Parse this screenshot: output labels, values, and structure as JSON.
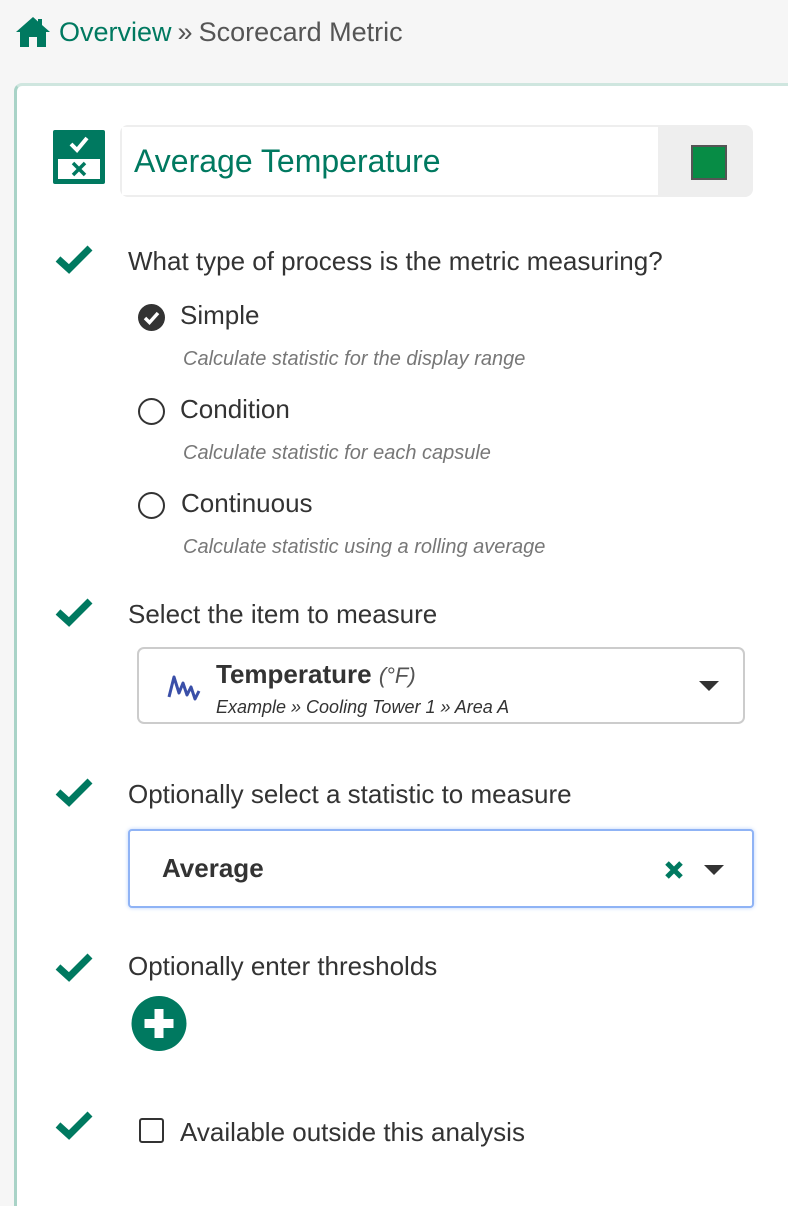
{
  "breadcrumb": {
    "home_icon": "home-icon",
    "link": "Overview",
    "separator": "»",
    "current": "Scorecard Metric"
  },
  "metric": {
    "icon": "scorecard-icon",
    "name": "Average Temperature",
    "color": "#078c45"
  },
  "colors": {
    "accent": "#007960",
    "signal": "#3a4fa8"
  },
  "process": {
    "question": "What type of process is the metric measuring?",
    "options": [
      {
        "label": "Simple",
        "description": "Calculate statistic for the display range",
        "selected": true
      },
      {
        "label": "Condition",
        "description": "Calculate statistic for each capsule",
        "selected": false
      },
      {
        "label": "Continuous",
        "description": "Calculate statistic using a rolling average",
        "selected": false
      }
    ]
  },
  "item": {
    "question": "Select the item to measure",
    "name": "Temperature",
    "unit": "(°F)",
    "path": "Example » Cooling Tower 1 » Area A",
    "icon": "signal-icon"
  },
  "statistic": {
    "question": "Optionally select a statistic to measure",
    "value": "Average"
  },
  "thresholds": {
    "question": "Optionally enter thresholds",
    "add_icon": "plus-circle-icon"
  },
  "availability": {
    "label": "Available outside this analysis",
    "checked": false
  }
}
